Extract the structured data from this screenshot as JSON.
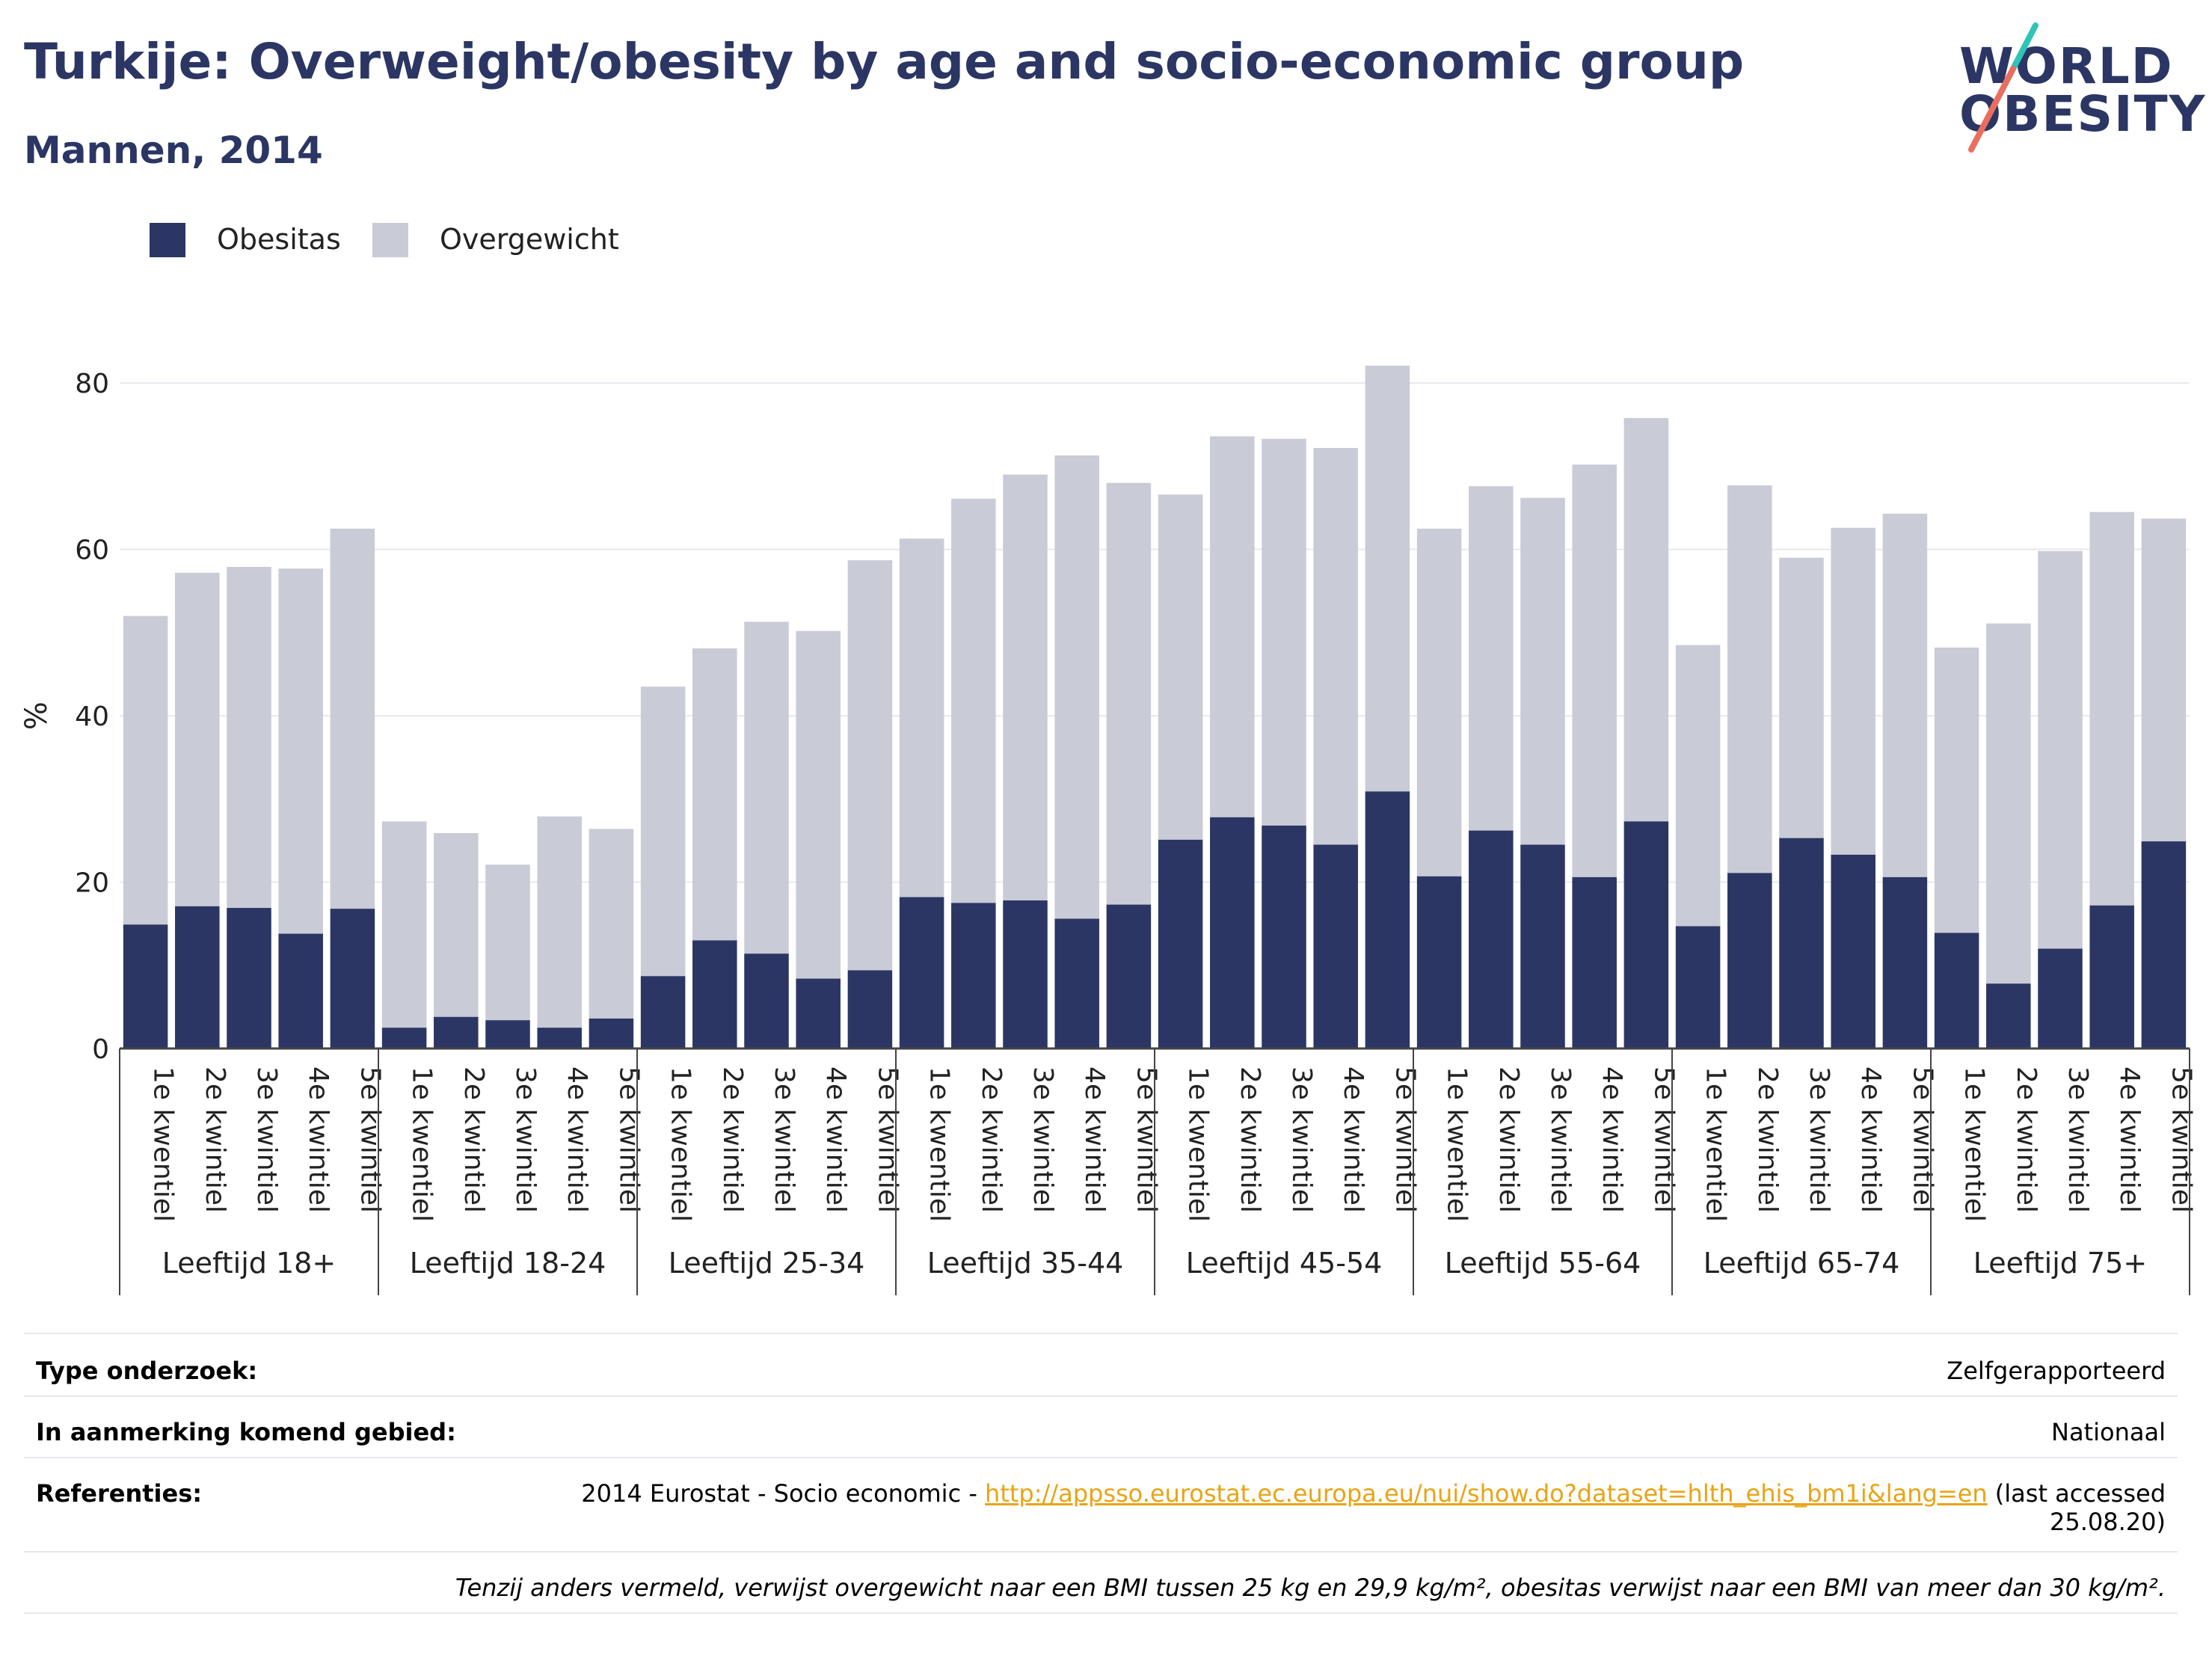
{
  "header": {
    "title": "Turkije: Overweight/obesity by age and socio-economic group",
    "subtitle": "Mannen, 2014"
  },
  "logo": {
    "line1": "WORLD",
    "line2": "OBESITY"
  },
  "legend": [
    {
      "label": "Obesitas",
      "color": "#2b3664"
    },
    {
      "label": "Overgewicht",
      "color": "#c9cbd6"
    }
  ],
  "chart_data": {
    "type": "bar",
    "stacked": true,
    "ylabel": "%",
    "ylim": [
      0,
      82
    ],
    "yticks": [
      0,
      20,
      40,
      60,
      80
    ],
    "grid": true,
    "legend_position": "top-left",
    "quintile_labels": [
      "1e kwentiel",
      "2e kwintiel",
      "3e kwintiel",
      "4e kwintiel",
      "5e kwintiel"
    ],
    "groups": [
      {
        "label": "Leeftijd 18+",
        "obesity": [
          14.9,
          17.1,
          16.9,
          13.8,
          16.8
        ],
        "total": [
          52.0,
          57.2,
          57.9,
          57.7,
          62.5
        ]
      },
      {
        "label": "Leeftijd 18-24",
        "obesity": [
          2.5,
          3.8,
          3.4,
          2.5,
          3.6
        ],
        "total": [
          27.3,
          25.9,
          22.1,
          27.9,
          26.4
        ]
      },
      {
        "label": "Leeftijd 25-34",
        "obesity": [
          8.7,
          13.0,
          11.4,
          8.4,
          9.4
        ],
        "total": [
          43.5,
          48.1,
          51.3,
          50.2,
          58.7
        ]
      },
      {
        "label": "Leeftijd 35-44",
        "obesity": [
          18.2,
          17.5,
          17.8,
          15.6,
          17.3
        ],
        "total": [
          61.3,
          66.1,
          69.0,
          71.3,
          68.0
        ]
      },
      {
        "label": "Leeftijd 45-54",
        "obesity": [
          25.1,
          27.8,
          26.8,
          24.5,
          30.9
        ],
        "total": [
          66.6,
          73.6,
          73.3,
          72.2,
          82.1
        ]
      },
      {
        "label": "Leeftijd 55-64",
        "obesity": [
          20.7,
          26.2,
          24.5,
          20.6,
          27.3
        ],
        "total": [
          62.5,
          67.6,
          66.2,
          70.2,
          75.8
        ]
      },
      {
        "label": "Leeftijd 65-74",
        "obesity": [
          14.7,
          21.1,
          25.3,
          23.3,
          20.6
        ],
        "total": [
          48.5,
          67.7,
          59.0,
          62.6,
          64.3
        ]
      },
      {
        "label": "Leeftijd 75+",
        "obesity": [
          13.9,
          7.8,
          12.0,
          17.2,
          24.9
        ],
        "total": [
          48.2,
          51.1,
          59.8,
          64.5,
          63.7
        ]
      }
    ]
  },
  "info": {
    "survey_type_label": "Type onderzoek:",
    "survey_type_value": "Zelfgerapporteerd",
    "area_label": "In aanmerking komend gebied:",
    "area_value": "Nationaal",
    "references_label": "Referenties:",
    "references_prefix": "2014 Eurostat - Socio economic - ",
    "references_link": "http://appsso.eurostat.ec.europa.eu/nui/show.do?dataset=hlth_ehis_bm1i&lang=en",
    "references_suffix_1": " (last accessed",
    "references_suffix_2": "25.08.20)",
    "note": "Tenzij anders vermeld, verwijst overgewicht naar een BMI tussen 25 kg en 29,9 kg/m², obesitas verwijst naar een BMI van meer dan 30 kg/m²."
  }
}
